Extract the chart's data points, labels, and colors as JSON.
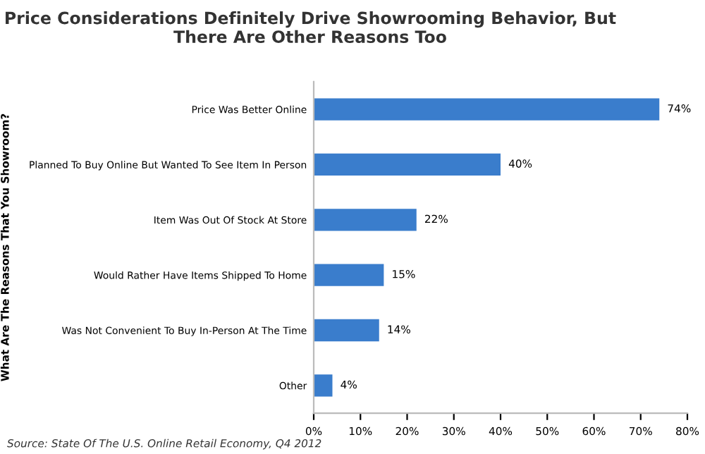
{
  "chart_data": {
    "type": "bar",
    "orientation": "horizontal",
    "title": "Price Considerations Definitely Drive Showrooming Behavior, But\nThere Are Other Reasons Too",
    "ylabel": "What Are The Reasons That You Showroom?",
    "categories": [
      "Price Was Better Online",
      "Planned To Buy Online But Wanted To See Item In Person",
      "Item Was Out Of Stock At Store",
      "Would Rather Have Items Shipped To Home",
      "Was Not Convenient To Buy In-Person At The Time",
      "Other"
    ],
    "values": [
      74,
      40,
      22,
      15,
      14,
      4
    ],
    "value_labels": [
      "74%",
      "40%",
      "22%",
      "15%",
      "14%",
      "4%"
    ],
    "color": "#3a7dcc",
    "xlim": [
      0,
      80
    ],
    "xticks": [
      {
        "value": 0,
        "label": "0%"
      },
      {
        "value": 10,
        "label": "10%"
      },
      {
        "value": 20,
        "label": "20%"
      },
      {
        "value": 30,
        "label": "30%"
      },
      {
        "value": 40,
        "label": "40%"
      },
      {
        "value": 50,
        "label": "50%"
      },
      {
        "value": 60,
        "label": "60%"
      },
      {
        "value": 70,
        "label": "70%"
      },
      {
        "value": 80,
        "label": "80%"
      }
    ],
    "grid": false,
    "annotations": [
      "Source: State Of The U.S. Online Retail Economy, Q4 2012"
    ]
  }
}
